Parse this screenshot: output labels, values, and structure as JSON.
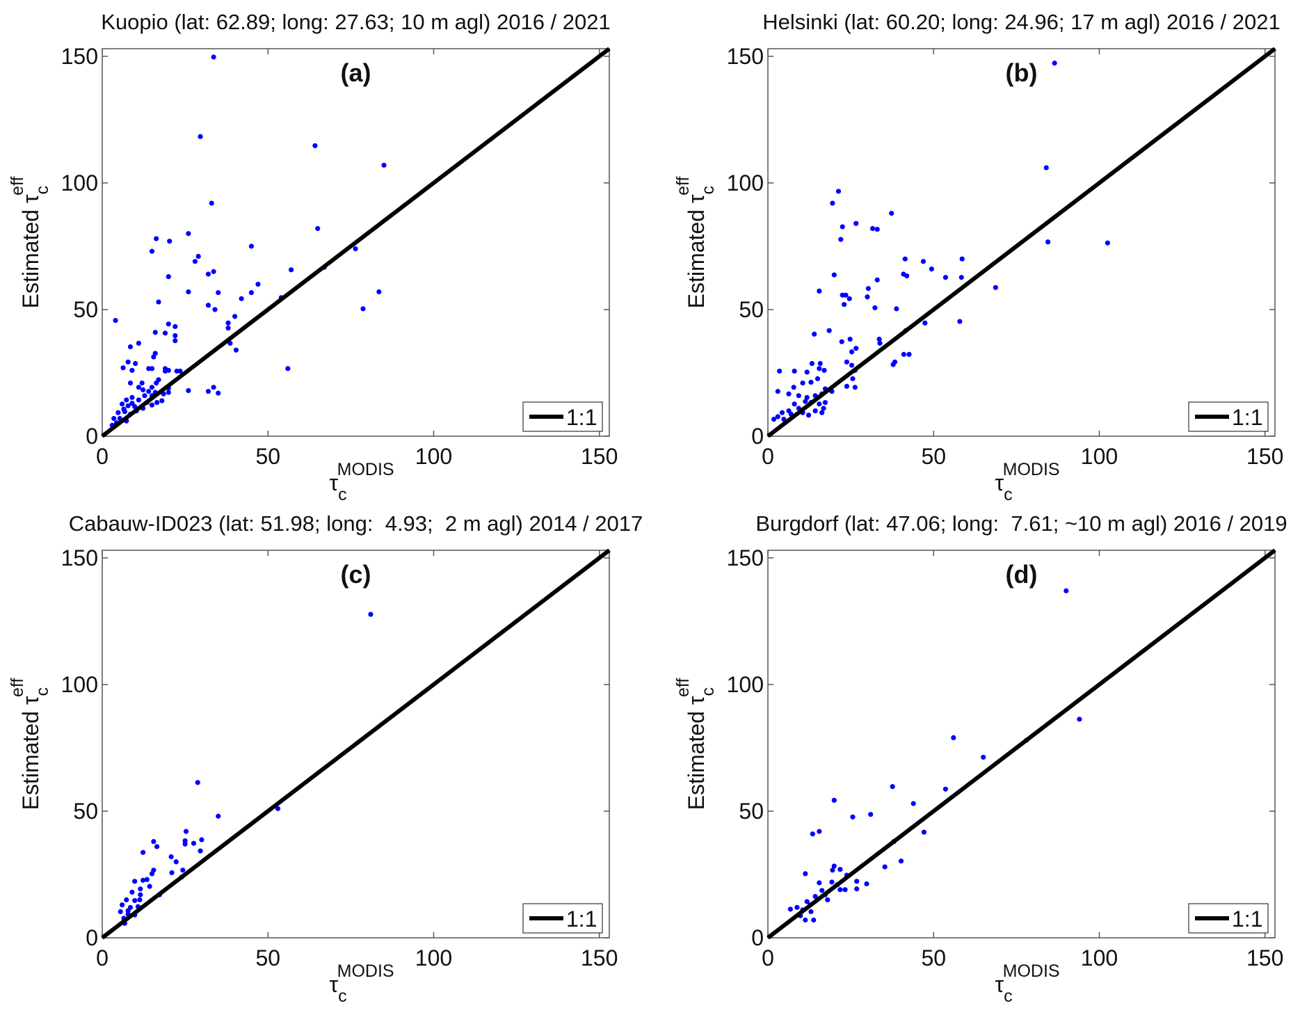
{
  "chart_data": [
    {
      "type": "scatter",
      "panel_label": "(a)",
      "title": "Kuopio (lat: 62.89; long: 27.63; 10 m agl) 2016 / 2021",
      "xlabel": {
        "base": "τ",
        "sub": "c",
        "sup": "MODIS"
      },
      "ylabel": {
        "prefix": "Estimated ",
        "base": "τ",
        "sub": "c",
        "sup": "eff"
      },
      "xlim": [
        0,
        153
      ],
      "ylim": [
        0,
        153
      ],
      "xticks": [
        0,
        50,
        100,
        150
      ],
      "yticks": [
        0,
        50,
        100,
        150
      ],
      "grid": false,
      "legend": {
        "label": "1:1",
        "placement": "bottom-right"
      },
      "reference_line": "1:1",
      "point_color": "#0000ff",
      "points": [
        [
          33.6,
          149.7
        ],
        [
          29.6,
          118.3
        ],
        [
          64.2,
          114.7
        ],
        [
          85,
          107
        ],
        [
          33,
          92
        ],
        [
          65,
          82
        ],
        [
          26,
          80
        ],
        [
          16.3,
          78
        ],
        [
          20.3,
          77
        ],
        [
          15,
          73
        ],
        [
          76.4,
          74
        ],
        [
          45,
          75
        ],
        [
          29,
          71
        ],
        [
          28,
          69
        ],
        [
          67,
          66.7
        ],
        [
          57,
          65.7
        ],
        [
          20,
          63
        ],
        [
          32,
          64
        ],
        [
          33.6,
          65
        ],
        [
          47,
          60
        ],
        [
          26,
          57
        ],
        [
          45,
          56.7
        ],
        [
          35,
          56.7
        ],
        [
          83.5,
          57
        ],
        [
          42,
          54.3
        ],
        [
          17,
          53
        ],
        [
          54,
          54.7
        ],
        [
          32,
          51.7
        ],
        [
          34,
          50
        ],
        [
          78.7,
          50.3
        ],
        [
          4,
          45.7
        ],
        [
          20,
          44.3
        ],
        [
          40,
          47.3
        ],
        [
          38,
          44.7
        ],
        [
          38,
          42.7
        ],
        [
          16,
          41
        ],
        [
          19,
          40.7
        ],
        [
          22,
          43.3
        ],
        [
          22,
          39.7
        ],
        [
          22,
          37.7
        ],
        [
          38,
          37.7
        ],
        [
          38.6,
          36.7
        ],
        [
          40.4,
          34
        ],
        [
          11,
          36.7
        ],
        [
          8.5,
          35.3
        ],
        [
          16,
          32.7
        ],
        [
          15.5,
          31.3
        ],
        [
          10,
          28.7
        ],
        [
          7.8,
          29.3
        ],
        [
          6.3,
          27
        ],
        [
          9,
          26
        ],
        [
          14,
          26.7
        ],
        [
          15,
          26.7
        ],
        [
          19,
          26.7
        ],
        [
          19,
          25.7
        ],
        [
          20,
          26
        ],
        [
          22.5,
          25.7
        ],
        [
          23.5,
          25.7
        ],
        [
          56,
          26.7
        ],
        [
          17,
          22.3
        ],
        [
          16.3,
          21
        ],
        [
          15,
          19.3
        ],
        [
          12,
          21
        ],
        [
          12.3,
          18.3
        ],
        [
          8.5,
          21
        ],
        [
          20,
          19
        ],
        [
          26,
          18
        ],
        [
          33.6,
          19.3
        ],
        [
          35,
          17
        ],
        [
          32,
          17.7
        ],
        [
          11,
          19.3
        ],
        [
          14,
          17.7
        ],
        [
          18.5,
          16.7
        ],
        [
          20,
          17.3
        ],
        [
          15,
          16
        ],
        [
          9,
          15.3
        ],
        [
          7.3,
          14.3
        ],
        [
          11,
          14.3
        ],
        [
          13.5,
          13.3
        ],
        [
          16.5,
          13.3
        ],
        [
          18,
          14
        ],
        [
          6,
          12.7
        ],
        [
          7.8,
          12
        ],
        [
          9.8,
          11.7
        ],
        [
          12.3,
          11
        ],
        [
          15,
          12.3
        ],
        [
          4.8,
          9.3
        ],
        [
          6.8,
          9.7
        ],
        [
          8.5,
          8.7
        ],
        [
          10.3,
          10
        ],
        [
          3.5,
          7
        ],
        [
          5.3,
          7
        ],
        [
          7.3,
          6
        ],
        [
          3,
          4.3
        ],
        [
          4.3,
          5.3
        ],
        [
          6.5,
          10.7
        ],
        [
          9,
          13
        ],
        [
          12.8,
          16
        ],
        [
          16,
          17.3
        ]
      ]
    },
    {
      "type": "scatter",
      "panel_label": "(b)",
      "title": "Helsinki (lat: 60.20; long: 24.96; 17 m agl) 2016 / 2021",
      "xlabel": {
        "base": "τ",
        "sub": "c",
        "sup": "MODIS"
      },
      "ylabel": {
        "prefix": "Estimated ",
        "base": "τ",
        "sub": "c",
        "sup": "eff"
      },
      "xlim": [
        0,
        153
      ],
      "ylim": [
        0,
        153
      ],
      "xticks": [
        0,
        50,
        100,
        150
      ],
      "yticks": [
        0,
        50,
        100,
        150
      ],
      "grid": false,
      "legend": {
        "label": "1:1",
        "placement": "bottom-right"
      },
      "reference_line": "1:1",
      "point_color": "#0000ff",
      "points": [
        [
          86.5,
          147.3
        ],
        [
          84,
          106
        ],
        [
          21.3,
          96.7
        ],
        [
          19.5,
          92
        ],
        [
          37.3,
          88
        ],
        [
          22.5,
          82.7
        ],
        [
          26.6,
          84
        ],
        [
          22,
          77.7
        ],
        [
          31.6,
          82
        ],
        [
          33,
          81.7
        ],
        [
          84.5,
          76.7
        ],
        [
          102.5,
          76.3
        ],
        [
          41.4,
          70
        ],
        [
          46.9,
          69
        ],
        [
          58.6,
          70
        ],
        [
          49.4,
          66
        ],
        [
          20,
          63.7
        ],
        [
          40.9,
          64
        ],
        [
          41.9,
          63.3
        ],
        [
          58.4,
          62.7
        ],
        [
          53.6,
          62.7
        ],
        [
          33,
          61.7
        ],
        [
          15.5,
          57.3
        ],
        [
          30.3,
          58.3
        ],
        [
          68.7,
          58.7
        ],
        [
          22.5,
          55.7
        ],
        [
          23.5,
          55.7
        ],
        [
          24.6,
          54.3
        ],
        [
          30,
          55
        ],
        [
          23,
          52
        ],
        [
          32.3,
          50.7
        ],
        [
          38.8,
          50.3
        ],
        [
          57.9,
          45.3
        ],
        [
          47.4,
          44.7
        ],
        [
          18.5,
          41.7
        ],
        [
          14,
          40.3
        ],
        [
          41.6,
          41.7
        ],
        [
          22.3,
          37.3
        ],
        [
          24.8,
          38.3
        ],
        [
          33.6,
          38.3
        ],
        [
          33.8,
          36.7
        ],
        [
          41,
          32.3
        ],
        [
          42.6,
          32.3
        ],
        [
          38.3,
          29.3
        ],
        [
          37.8,
          28.3
        ],
        [
          25.3,
          33.3
        ],
        [
          26.6,
          34.7
        ],
        [
          23.8,
          29.3
        ],
        [
          13.3,
          28.7
        ],
        [
          15.8,
          28.7
        ],
        [
          15.5,
          26.7
        ],
        [
          17,
          26
        ],
        [
          25.3,
          28
        ],
        [
          26.3,
          26
        ],
        [
          3.5,
          25.7
        ],
        [
          8,
          25.7
        ],
        [
          11.8,
          25.3
        ],
        [
          25.6,
          22.7
        ],
        [
          26.3,
          19.3
        ],
        [
          23.8,
          19.7
        ],
        [
          15,
          22.7
        ],
        [
          13,
          21.3
        ],
        [
          10.5,
          21
        ],
        [
          7.8,
          19.3
        ],
        [
          17.3,
          18.7
        ],
        [
          19.3,
          17.7
        ],
        [
          3,
          17.7
        ],
        [
          6.3,
          16.7
        ],
        [
          9.3,
          16
        ],
        [
          11.8,
          15.3
        ],
        [
          14.3,
          16
        ],
        [
          16.3,
          16.7
        ],
        [
          11.3,
          13.7
        ],
        [
          13,
          13.3
        ],
        [
          15.5,
          12.7
        ],
        [
          17.3,
          13.3
        ],
        [
          8,
          12.7
        ],
        [
          9.3,
          11
        ],
        [
          6.3,
          10
        ],
        [
          4.3,
          9.3
        ],
        [
          7,
          8.7
        ],
        [
          10.5,
          9.3
        ],
        [
          12.3,
          8.3
        ],
        [
          16.3,
          9.3
        ],
        [
          3,
          7.7
        ],
        [
          4.8,
          6.7
        ],
        [
          1.8,
          6.7
        ],
        [
          14.3,
          10
        ],
        [
          16.8,
          11
        ]
      ]
    },
    {
      "type": "scatter",
      "panel_label": "(c)",
      "title": "Cabauw-ID023 (lat: 51.98; long:  4.93;  2 m agl) 2014 / 2017",
      "xlabel": {
        "base": "τ",
        "sub": "c",
        "sup": "MODIS"
      },
      "ylabel": {
        "prefix": "Estimated ",
        "base": "τ",
        "sub": "c",
        "sup": "eff"
      },
      "xlim": [
        0,
        153
      ],
      "ylim": [
        0,
        153
      ],
      "xticks": [
        0,
        50,
        100,
        150
      ],
      "yticks": [
        0,
        50,
        100,
        150
      ],
      "grid": false,
      "legend": {
        "label": "1:1",
        "placement": "bottom-right"
      },
      "reference_line": "1:1",
      "point_color": "#0000ff",
      "points": [
        [
          81,
          127.7
        ],
        [
          28.8,
          61.3
        ],
        [
          35,
          48
        ],
        [
          53,
          51
        ],
        [
          15.5,
          38
        ],
        [
          16.5,
          36
        ],
        [
          25,
          38.3
        ],
        [
          25,
          37
        ],
        [
          27.6,
          37.3
        ],
        [
          30,
          38.7
        ],
        [
          29.6,
          34.3
        ],
        [
          25.3,
          42
        ],
        [
          12.3,
          33.7
        ],
        [
          20.8,
          32
        ],
        [
          22.3,
          30
        ],
        [
          15.5,
          26.7
        ],
        [
          15,
          25.3
        ],
        [
          13.5,
          23
        ],
        [
          12.3,
          22.7
        ],
        [
          9.8,
          22.3
        ],
        [
          21,
          25.7
        ],
        [
          24.3,
          26.7
        ],
        [
          24,
          24
        ],
        [
          14.3,
          20.3
        ],
        [
          11.5,
          19.3
        ],
        [
          9,
          18
        ],
        [
          11.5,
          17
        ],
        [
          17.3,
          17
        ],
        [
          7.3,
          15
        ],
        [
          9.8,
          14.7
        ],
        [
          6,
          13
        ],
        [
          8.5,
          12
        ],
        [
          10.8,
          12.3
        ],
        [
          5.5,
          10.3
        ],
        [
          7.8,
          9.3
        ],
        [
          6.5,
          7.7
        ],
        [
          9.8,
          9
        ],
        [
          7.8,
          10.7
        ],
        [
          11.3,
          15
        ],
        [
          6.8,
          5.7
        ]
      ]
    },
    {
      "type": "scatter",
      "panel_label": "(d)",
      "title": "Burgdorf (lat: 47.06; long:  7.61; ~10 m agl) 2016 / 2019",
      "xlabel": {
        "base": "τ",
        "sub": "c",
        "sup": "MODIS"
      },
      "ylabel": {
        "prefix": "Estimated ",
        "base": "τ",
        "sub": "c",
        "sup": "eff"
      },
      "xlim": [
        0,
        153
      ],
      "ylim": [
        0,
        153
      ],
      "xticks": [
        0,
        50,
        100,
        150
      ],
      "yticks": [
        0,
        50,
        100,
        150
      ],
      "grid": false,
      "legend": {
        "label": "1:1",
        "placement": "bottom-right"
      },
      "reference_line": "1:1",
      "point_color": "#0000ff",
      "points": [
        [
          90,
          137
        ],
        [
          94,
          86.3
        ],
        [
          56,
          79
        ],
        [
          65,
          71.3
        ],
        [
          78,
          78
        ],
        [
          37.6,
          59.7
        ],
        [
          53.6,
          58.7
        ],
        [
          20,
          54.3
        ],
        [
          31,
          48.7
        ],
        [
          25.6,
          47.7
        ],
        [
          43.9,
          53
        ],
        [
          13.5,
          41
        ],
        [
          15.5,
          42
        ],
        [
          47.1,
          41.7
        ],
        [
          38,
          38
        ],
        [
          40.2,
          30.3
        ],
        [
          20,
          28.3
        ],
        [
          19.5,
          26.7
        ],
        [
          21.8,
          27
        ],
        [
          35.3,
          28
        ],
        [
          23.8,
          24.7
        ],
        [
          29.8,
          21.3
        ],
        [
          11.3,
          25.3
        ],
        [
          19.3,
          22
        ],
        [
          21,
          21
        ],
        [
          21.8,
          19
        ],
        [
          23.3,
          19
        ],
        [
          26.8,
          19.3
        ],
        [
          26.8,
          22.3
        ],
        [
          15.5,
          21.7
        ],
        [
          16.3,
          18.7
        ],
        [
          14.3,
          16.3
        ],
        [
          17.3,
          17
        ],
        [
          18,
          15
        ],
        [
          11.8,
          14.3
        ],
        [
          12.8,
          13
        ],
        [
          8.8,
          12
        ],
        [
          6.8,
          11.3
        ],
        [
          10.5,
          11
        ],
        [
          13,
          10.3
        ],
        [
          9.8,
          8.7
        ],
        [
          13.8,
          7
        ],
        [
          11.3,
          7
        ]
      ]
    }
  ]
}
